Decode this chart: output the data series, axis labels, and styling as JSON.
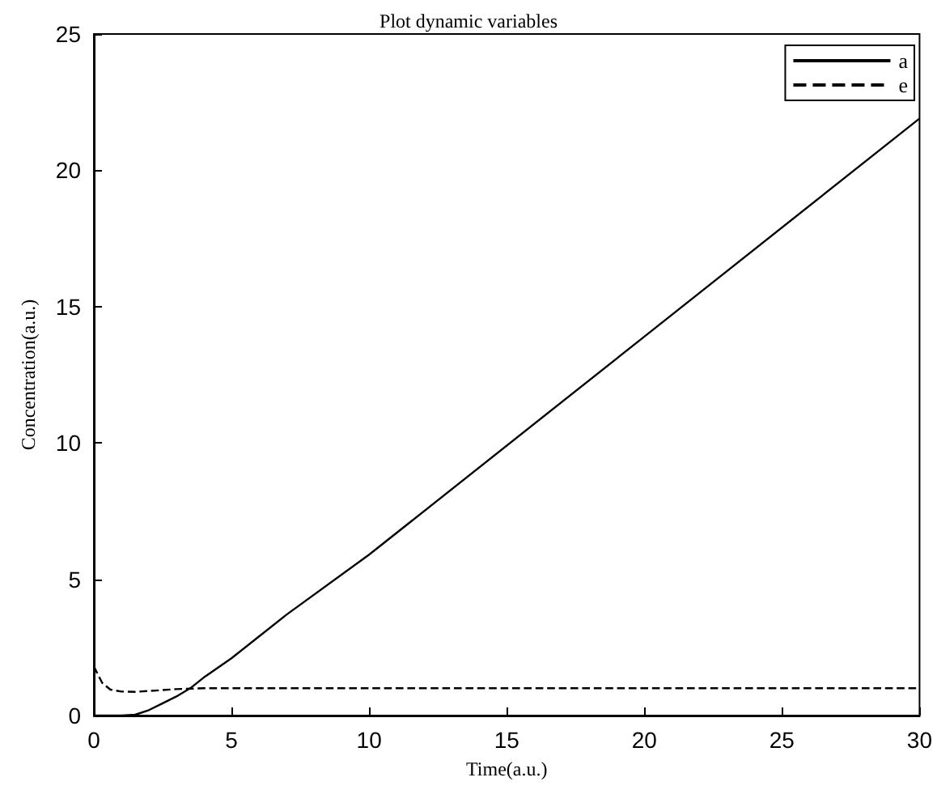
{
  "chart_data": {
    "type": "line",
    "title": "Plot dynamic variables",
    "xlabel": "Time(a.u.)",
    "ylabel": "Concentration(a.u.)",
    "xlim": [
      0,
      30
    ],
    "xticks": [
      0,
      5,
      10,
      15,
      20,
      25,
      30
    ],
    "ylim": [
      0,
      25
    ],
    "yticks": [
      0,
      5,
      10,
      15,
      20,
      25
    ],
    "grid": false,
    "legend": "top right",
    "marker": "none",
    "series": [
      {
        "name": "a",
        "color": "#000000",
        "line_style": "solid",
        "x": [
          0,
          1,
          1.5,
          2,
          2.5,
          3,
          3.5,
          4,
          5,
          7,
          10,
          20,
          30
        ],
        "values": [
          0,
          0,
          0.03,
          0.2,
          0.45,
          0.7,
          1.0,
          1.4,
          2.1,
          3.7,
          5.9,
          13.9,
          21.9
        ]
      },
      {
        "name": "e",
        "color": "#000000",
        "line_style": "dashed",
        "x": [
          0,
          0.3,
          0.6,
          1,
          1.5,
          2,
          3,
          4,
          30
        ],
        "values": [
          1.8,
          1.2,
          0.95,
          0.88,
          0.87,
          0.9,
          0.97,
          1.0,
          1.0
        ]
      }
    ]
  }
}
